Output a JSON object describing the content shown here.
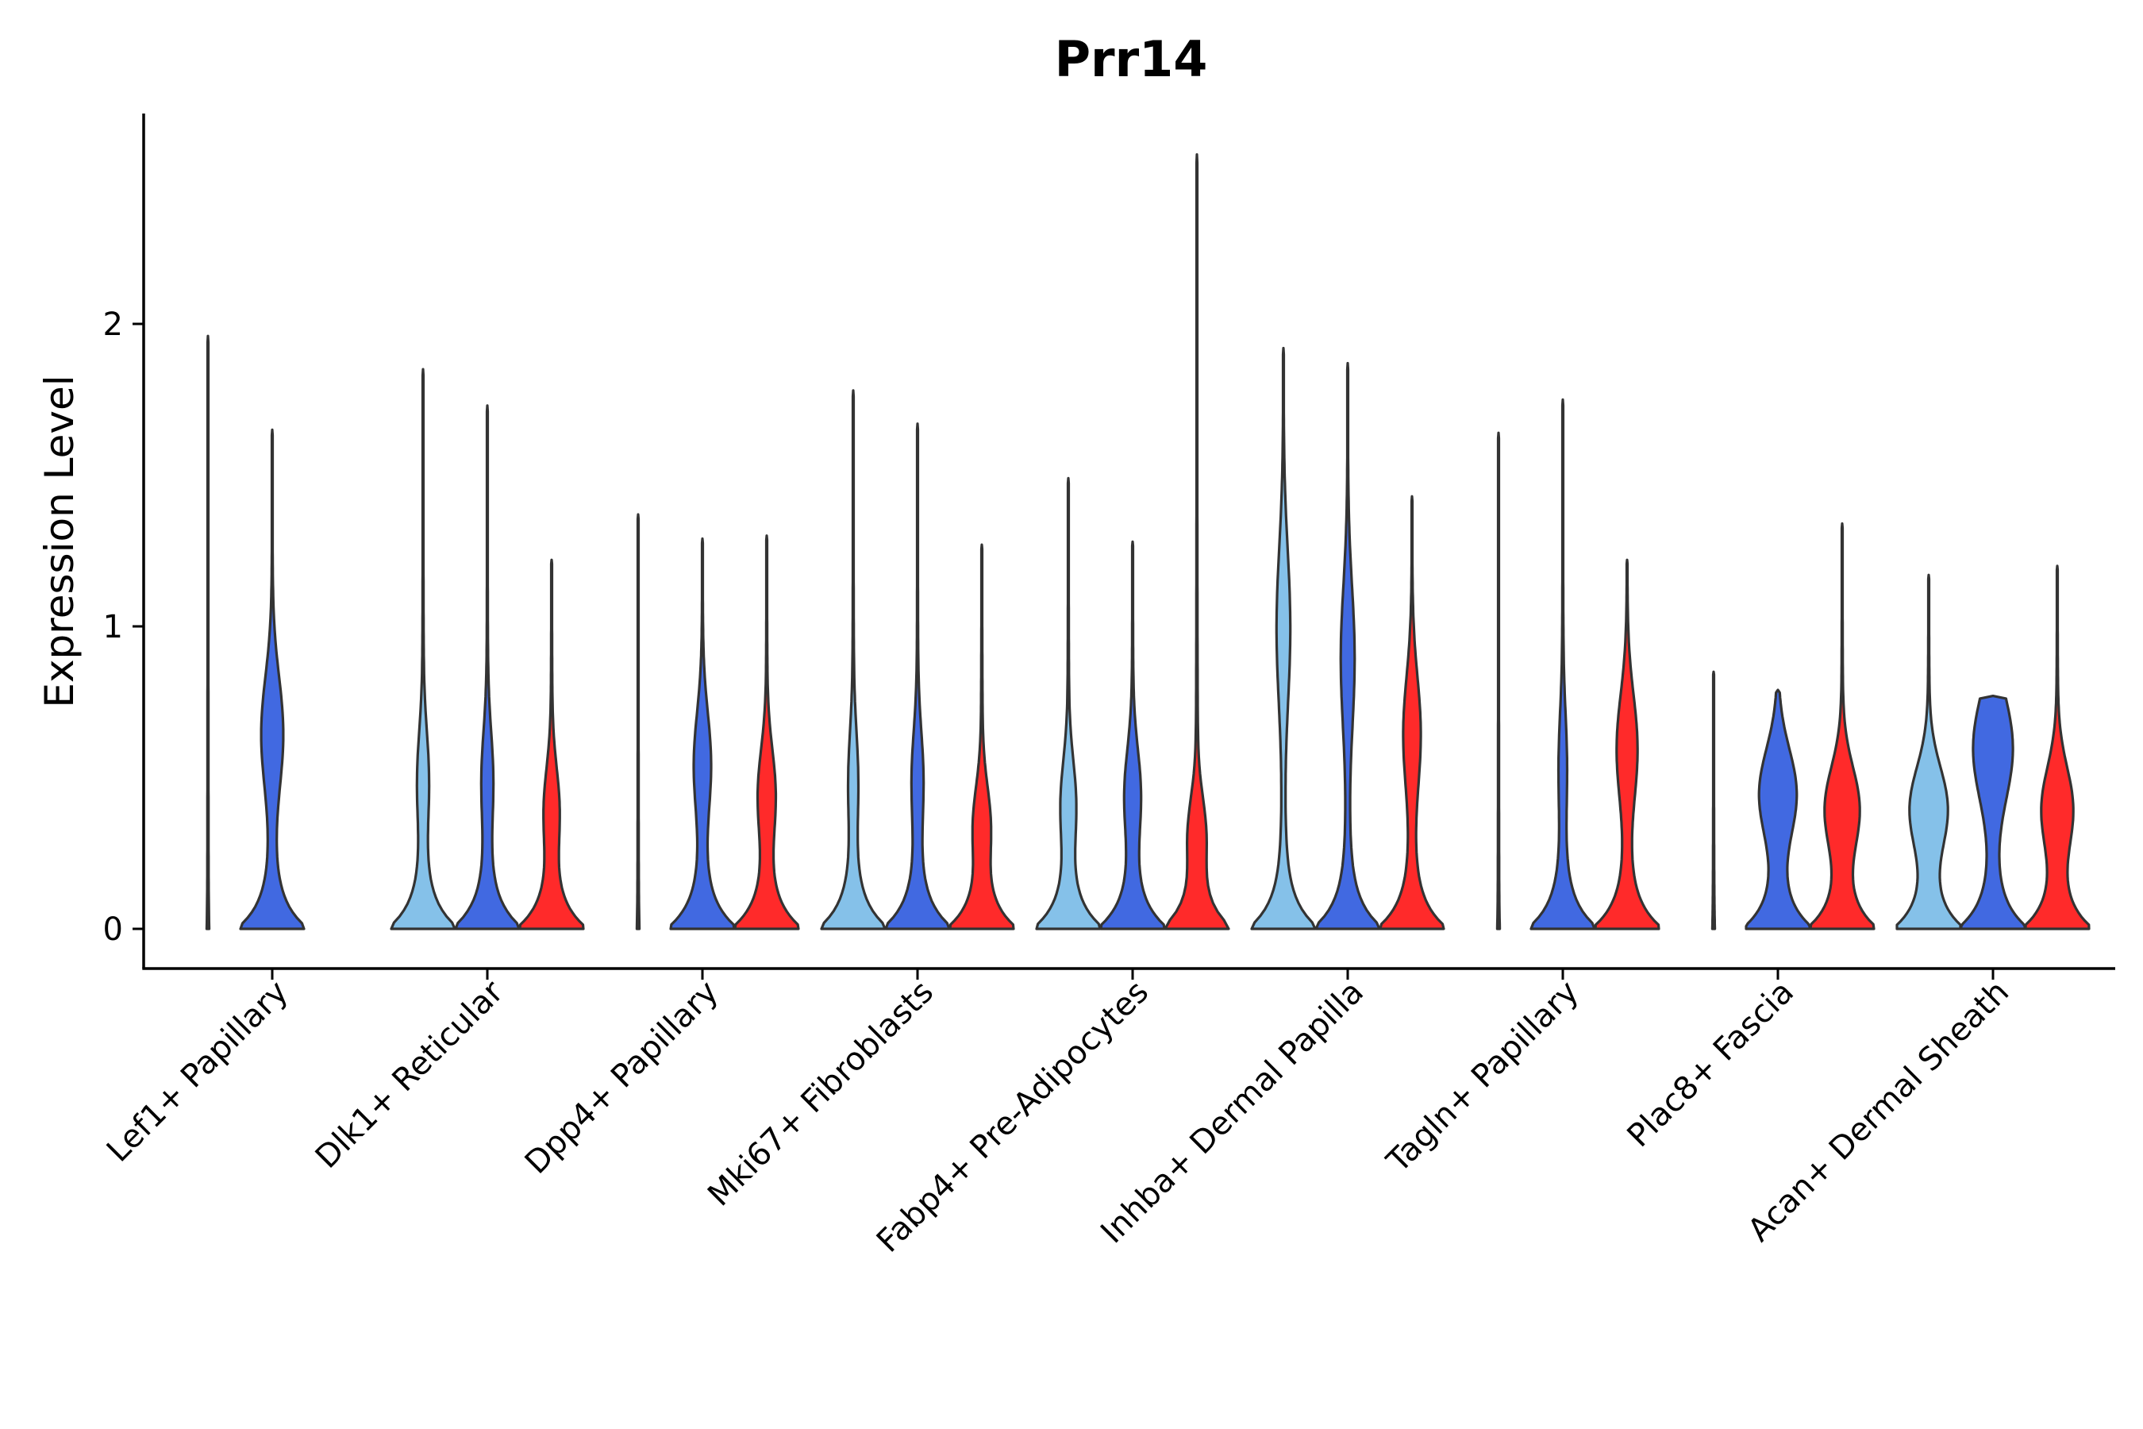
{
  "chart_data": {
    "type": "violin",
    "title": "Prr14",
    "xlabel": "",
    "ylabel": "Expression Level",
    "ylim": [
      -0.13,
      2.7
    ],
    "yticks": [
      0,
      1,
      2
    ],
    "legend": "none",
    "group_colors": [
      "#85C1E9",
      "#4169E1",
      "#FF2A2A"
    ],
    "categories": [
      "Lef1+ Papillary",
      "Dlk1+ Reticular",
      "Dpp4+ Papillary",
      "Mki67+ Fibroblasts",
      "Fabp4+ Pre-Adipocytes",
      "Inhba+ Dermal Papilla",
      "Tagln+ Papillary",
      "Plac8+ Fascia",
      "Acan+ Dermal Sheath"
    ],
    "violins": [
      {
        "category": 0,
        "group": 0,
        "max": 1.96,
        "base_width": 0.02,
        "mode_y": 0.0,
        "mode_width": 0.0
      },
      {
        "category": 0,
        "group": 1,
        "max": 1.65,
        "base_width": 1.0,
        "mode_y": 0.65,
        "mode_width": 0.32
      },
      {
        "category": 1,
        "group": 0,
        "max": 1.85,
        "base_width": 1.0,
        "mode_y": 0.5,
        "mode_width": 0.15
      },
      {
        "category": 1,
        "group": 1,
        "max": 1.73,
        "base_width": 1.0,
        "mode_y": 0.5,
        "mode_width": 0.15
      },
      {
        "category": 1,
        "group": 2,
        "max": 1.22,
        "base_width": 1.0,
        "mode_y": 0.4,
        "mode_width": 0.2
      },
      {
        "category": 2,
        "group": 0,
        "max": 1.37,
        "base_width": 0.02,
        "mode_y": 0.0,
        "mode_width": 0.0
      },
      {
        "category": 2,
        "group": 1,
        "max": 1.29,
        "base_width": 1.0,
        "mode_y": 0.55,
        "mode_width": 0.24
      },
      {
        "category": 2,
        "group": 2,
        "max": 1.3,
        "base_width": 1.0,
        "mode_y": 0.45,
        "mode_width": 0.24
      },
      {
        "category": 3,
        "group": 0,
        "max": 1.78,
        "base_width": 1.0,
        "mode_y": 0.5,
        "mode_width": 0.12
      },
      {
        "category": 3,
        "group": 1,
        "max": 1.67,
        "base_width": 1.0,
        "mode_y": 0.5,
        "mode_width": 0.15
      },
      {
        "category": 3,
        "group": 2,
        "max": 1.27,
        "base_width": 1.0,
        "mode_y": 0.35,
        "mode_width": 0.22
      },
      {
        "category": 4,
        "group": 0,
        "max": 1.49,
        "base_width": 1.0,
        "mode_y": 0.42,
        "mode_width": 0.2
      },
      {
        "category": 4,
        "group": 1,
        "max": 1.28,
        "base_width": 1.0,
        "mode_y": 0.45,
        "mode_width": 0.22
      },
      {
        "category": 4,
        "group": 2,
        "max": 2.56,
        "base_width": 1.0,
        "mode_y": 0.32,
        "mode_width": 0.22
      },
      {
        "category": 5,
        "group": 0,
        "max": 1.92,
        "base_width": 1.0,
        "mode_y": 1.0,
        "mode_width": 0.2
      },
      {
        "category": 5,
        "group": 1,
        "max": 1.87,
        "base_width": 1.0,
        "mode_y": 0.9,
        "mode_width": 0.2
      },
      {
        "category": 5,
        "group": 2,
        "max": 1.43,
        "base_width": 1.0,
        "mode_y": 0.65,
        "mode_width": 0.25
      },
      {
        "category": 6,
        "group": 0,
        "max": 1.64,
        "base_width": 0.02,
        "mode_y": 0.0,
        "mode_width": 0.0
      },
      {
        "category": 6,
        "group": 1,
        "max": 1.75,
        "base_width": 1.0,
        "mode_y": 0.55,
        "mode_width": 0.1
      },
      {
        "category": 6,
        "group": 2,
        "max": 1.22,
        "base_width": 1.0,
        "mode_y": 0.6,
        "mode_width": 0.3
      },
      {
        "category": 7,
        "group": 0,
        "max": 0.85,
        "base_width": 0.02,
        "mode_y": 0.0,
        "mode_width": 0.0
      },
      {
        "category": 7,
        "group": 1,
        "max": 0.79,
        "base_width": 1.0,
        "mode_y": 0.45,
        "mode_width": 0.55
      },
      {
        "category": 7,
        "group": 2,
        "max": 1.34,
        "base_width": 1.0,
        "mode_y": 0.4,
        "mode_width": 0.5
      },
      {
        "category": 8,
        "group": 0,
        "max": 1.17,
        "base_width": 1.0,
        "mode_y": 0.4,
        "mode_width": 0.55
      },
      {
        "category": 8,
        "group": 1,
        "max": 0.77,
        "base_width": 1.0,
        "mode_y": 0.6,
        "mode_width": 0.6
      },
      {
        "category": 8,
        "group": 2,
        "max": 1.2,
        "base_width": 1.0,
        "mode_y": 0.4,
        "mode_width": 0.45
      }
    ]
  }
}
